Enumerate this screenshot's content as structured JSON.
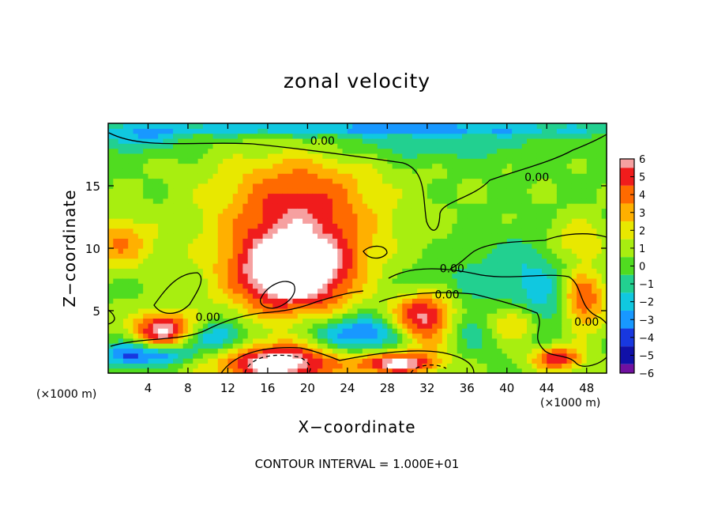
{
  "chart_data": {
    "type": "heatmap",
    "title": "zonal velocity",
    "xlabel": "X−coordinate",
    "ylabel": "Z−coordinate",
    "x_unit": "(×1000 m)",
    "xlim": [
      0,
      50
    ],
    "ylim": [
      0,
      20
    ],
    "x_ticks": [
      "4",
      "8",
      "12",
      "16",
      "20",
      "24",
      "28",
      "32",
      "36",
      "40",
      "44",
      "48"
    ],
    "y_ticks": [
      "5",
      "10",
      "15"
    ],
    "colorbar": {
      "levels": [
        "6",
        "5",
        "4",
        "3",
        "2",
        "1",
        "0",
        "−1",
        "−2",
        "−3",
        "−4",
        "−5",
        "−6"
      ],
      "colors": [
        "#f6a0a0",
        "#f01c1c",
        "#ff6a00",
        "#ffb000",
        "#e8e800",
        "#a8ee10",
        "#50dc20",
        "#22d090",
        "#10c8e0",
        "#1898ff",
        "#1838e0",
        "#1010a8",
        "#7010a0"
      ]
    },
    "contour_labels": [
      {
        "text": "0.00",
        "x": 21.5,
        "z": 18.6
      },
      {
        "text": "0.00",
        "x": 43,
        "z": 15.7
      },
      {
        "text": "0.00",
        "x": 34.5,
        "z": 8.4
      },
      {
        "text": "0.00",
        "x": 34,
        "z": 6.3
      },
      {
        "text": "0.00",
        "x": 10,
        "z": 4.5
      },
      {
        "text": "0.00",
        "x": 48,
        "z": 4.1
      }
    ],
    "blobs": [
      {
        "x": 19,
        "z": 12.5,
        "a": 8,
        "b": 5.5,
        "v": 4.8
      },
      {
        "x": 18.5,
        "z": 7.8,
        "a": 6,
        "b": 3,
        "v": 6.5
      },
      {
        "x": 5.5,
        "z": 3.5,
        "a": 3,
        "b": 1.4,
        "v": 6
      },
      {
        "x": 32,
        "z": 4.3,
        "a": 3.5,
        "b": 2.2,
        "v": 7
      },
      {
        "x": 17,
        "z": 0.8,
        "a": 6,
        "b": 1.6,
        "v": 7
      },
      {
        "x": 29,
        "z": 0.8,
        "a": 4,
        "b": 0.9,
        "v": 6
      },
      {
        "x": 40,
        "z": 4,
        "a": 3.5,
        "b": 1.4,
        "v": 3.5
      },
      {
        "x": 47.5,
        "z": 6,
        "a": 2.5,
        "b": 2.5,
        "v": 4.5
      },
      {
        "x": 1,
        "z": 10.5,
        "a": 3.5,
        "b": 2,
        "v": 3.2
      },
      {
        "x": 47,
        "z": 10.5,
        "a": 3,
        "b": 1.8,
        "v": 2.5
      },
      {
        "x": 45,
        "z": 1.2,
        "a": 2.5,
        "b": 1,
        "v": 5
      },
      {
        "x": 25.5,
        "z": 3.2,
        "a": 5,
        "b": 1.4,
        "v": -4.5
      },
      {
        "x": 36,
        "z": 3.8,
        "a": 4,
        "b": 1.7,
        "v": -3.5
      },
      {
        "x": 11,
        "z": 2.8,
        "a": 3,
        "b": 1.3,
        "v": -3.5
      },
      {
        "x": 2,
        "z": 1.5,
        "a": 3,
        "b": 1,
        "v": -4
      },
      {
        "x": 6,
        "z": 1.5,
        "a": 2.5,
        "b": 0.8,
        "v": -3
      },
      {
        "x": 44,
        "z": 5,
        "a": 2.5,
        "b": 2.3,
        "v": -2.5
      },
      {
        "x": 30,
        "z": 18.2,
        "a": 16,
        "b": 1.3,
        "v": -1.5
      },
      {
        "x": 25,
        "z": 19.6,
        "a": 26,
        "b": 0.6,
        "v": -3.5
      },
      {
        "x": 34,
        "z": 7,
        "a": 9,
        "b": 2,
        "v": -1.3
      },
      {
        "x": 43,
        "z": 8.8,
        "a": 6,
        "b": 2.5,
        "v": -1.6
      },
      {
        "x": 3,
        "z": 18.8,
        "a": 4,
        "b": 1,
        "v": -2.5
      }
    ],
    "base_value": 0.4,
    "contour_interval_note": "CONTOUR INTERVAL = 1.000E+01"
  }
}
